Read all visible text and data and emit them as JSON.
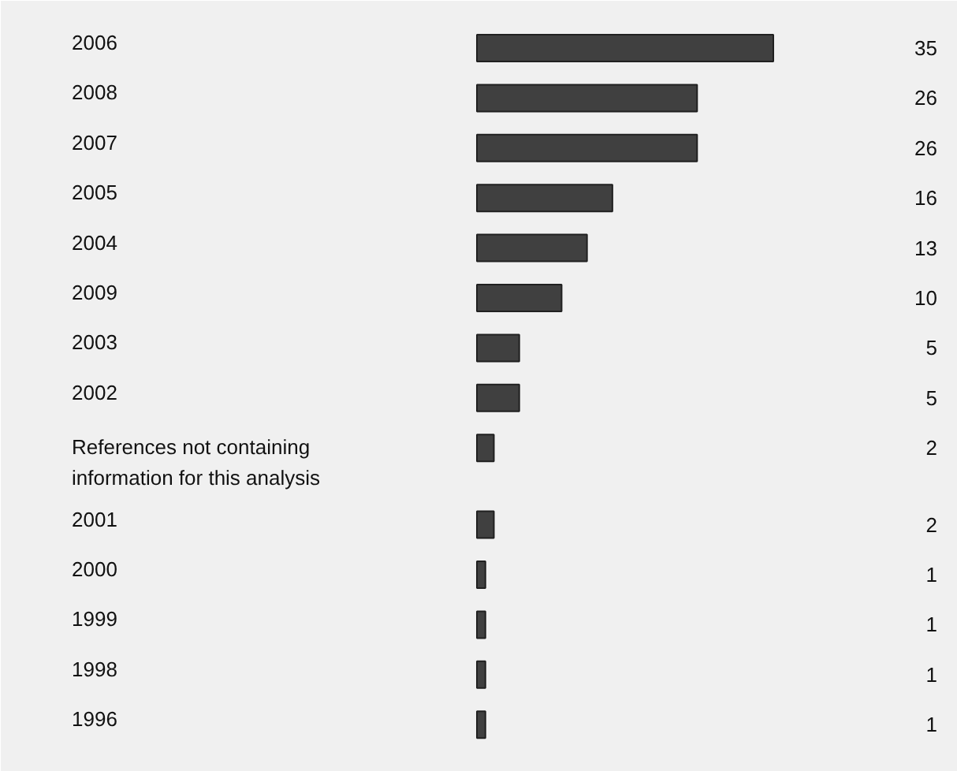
{
  "chart_data": {
    "type": "bar",
    "orientation": "horizontal",
    "categories": [
      "2006",
      "2008",
      "2007",
      "2005",
      "2004",
      "2009",
      "2003",
      "2002",
      "References not containing\ninformation for this analysis",
      "2001",
      "2000",
      "1999",
      "1998",
      "1996"
    ],
    "values": [
      35,
      26,
      26,
      16,
      13,
      10,
      5,
      5,
      2,
      2,
      1,
      1,
      1,
      1
    ],
    "color": "#404040",
    "data_labels": true
  }
}
